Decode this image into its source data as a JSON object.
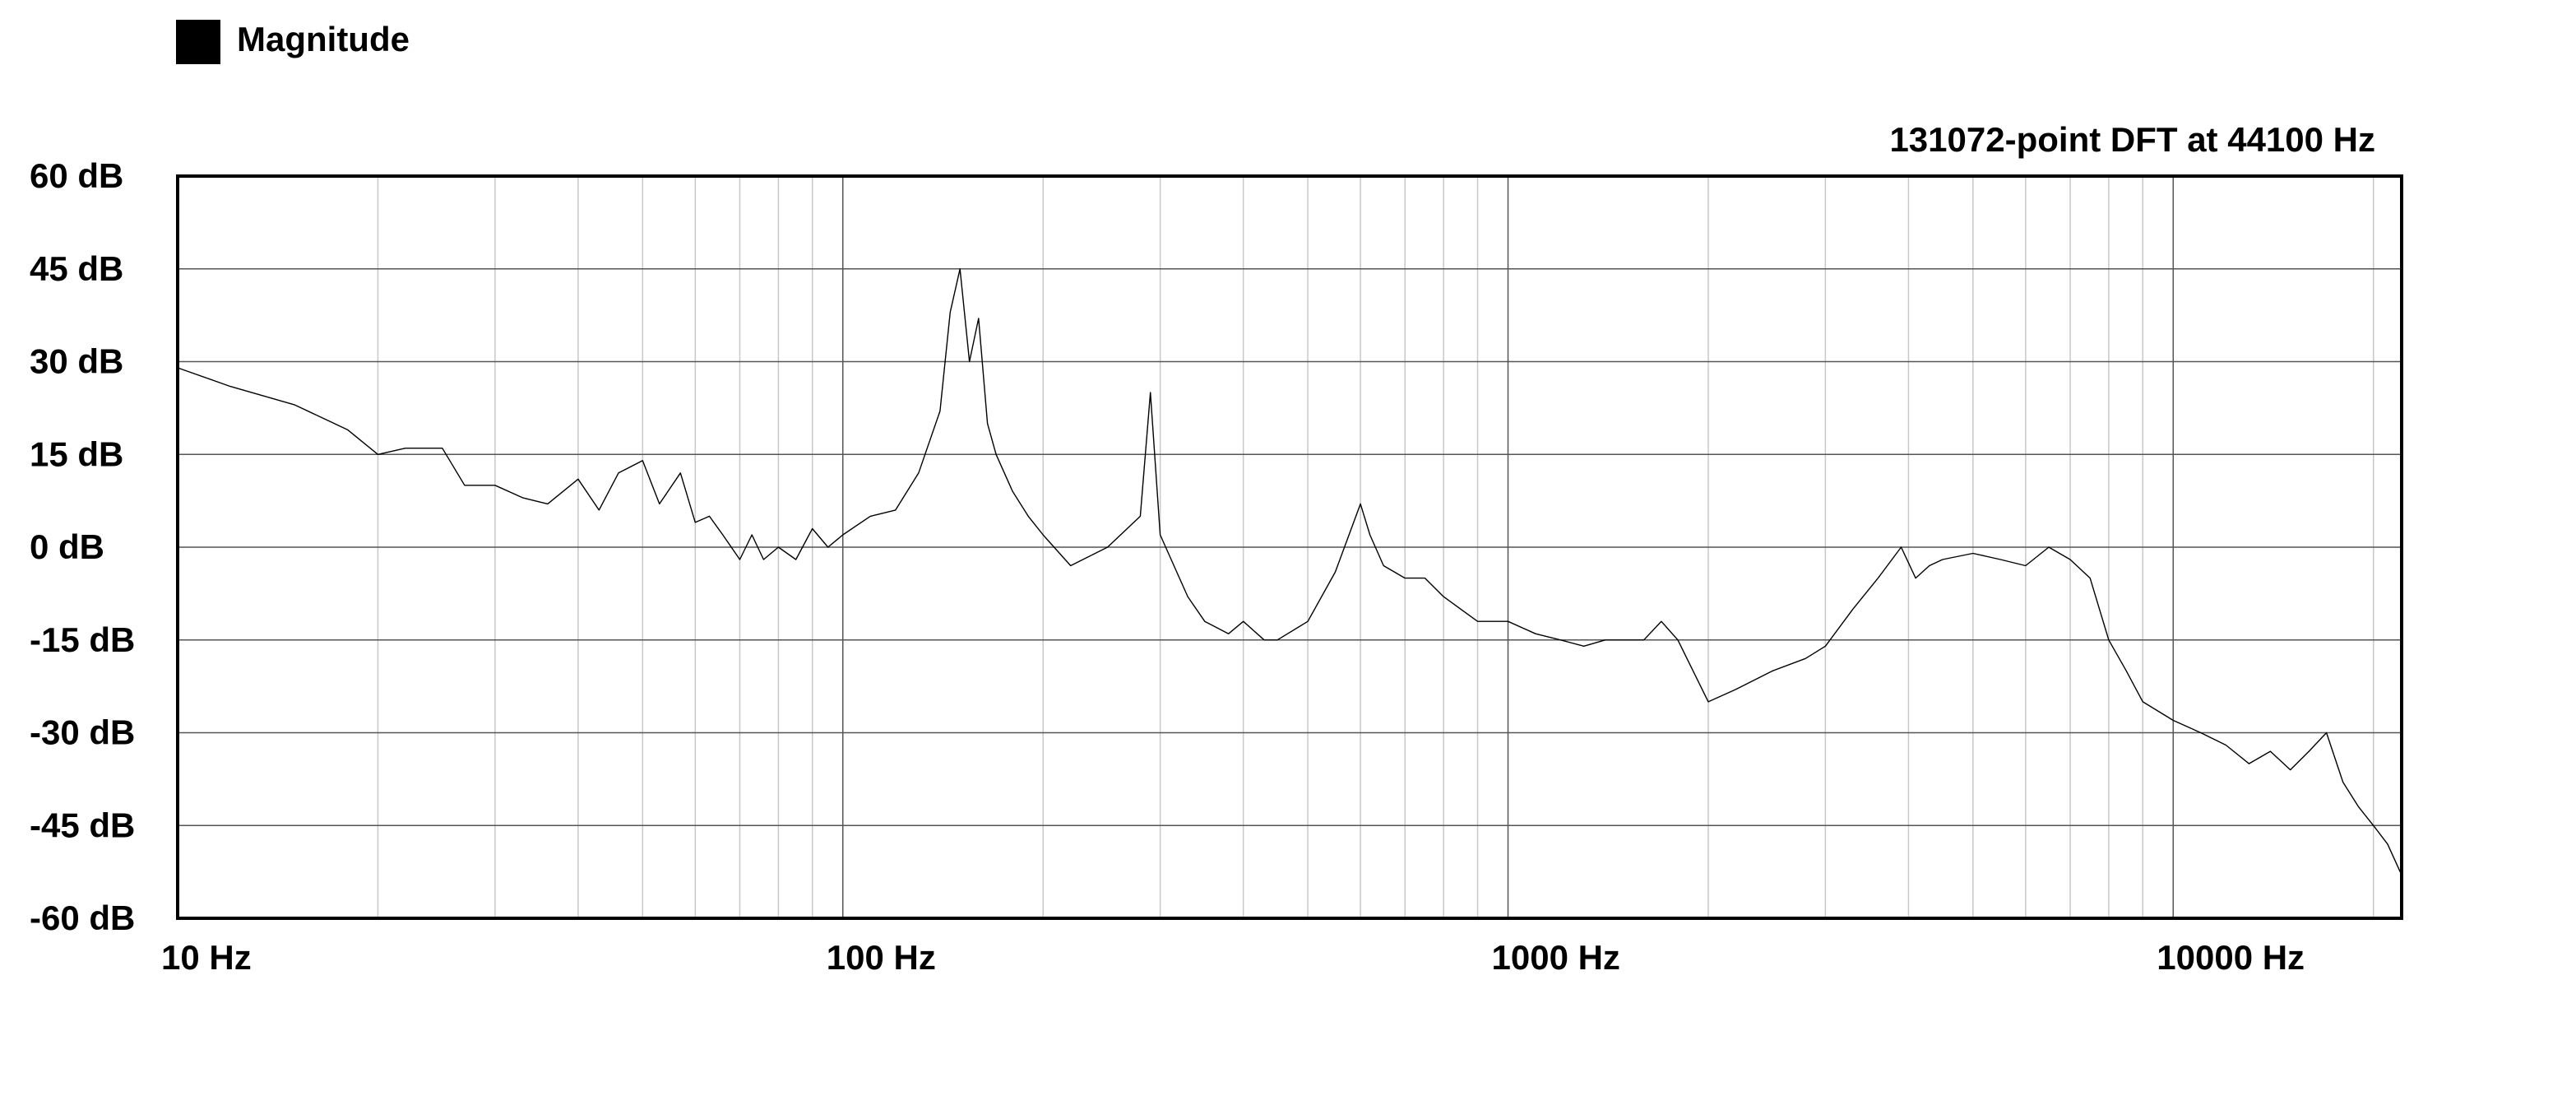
{
  "chart_data": {
    "type": "line",
    "title": "131072-point DFT at 44100 Hz",
    "legend": {
      "placement": "top-left",
      "entries": [
        {
          "name": "Magnitude",
          "color": "#000000"
        }
      ]
    },
    "x_scale": "log",
    "xlim": [
      10,
      22050
    ],
    "ylim": [
      -60,
      60
    ],
    "x_ticks": [
      {
        "value": 10,
        "label": "10 Hz"
      },
      {
        "value": 100,
        "label": "100 Hz"
      },
      {
        "value": 1000,
        "label": "1000 Hz"
      },
      {
        "value": 10000,
        "label": "10000 Hz"
      }
    ],
    "y_ticks": [
      {
        "value": 60,
        "label": "60 dB"
      },
      {
        "value": 45,
        "label": "45 dB"
      },
      {
        "value": 30,
        "label": "30 dB"
      },
      {
        "value": 15,
        "label": "15 dB"
      },
      {
        "value": 0,
        "label": "0 dB"
      },
      {
        "value": -15,
        "label": "-15 dB"
      },
      {
        "value": -30,
        "label": "-30 dB"
      },
      {
        "value": -45,
        "label": "-45 dB"
      },
      {
        "value": -60,
        "label": "-60 dB"
      }
    ],
    "grid": true,
    "series": [
      {
        "name": "Magnitude",
        "color": "#000000",
        "x": [
          10,
          12,
          15,
          18,
          20,
          22,
          25,
          27,
          30,
          33,
          36,
          40,
          43,
          46,
          50,
          53,
          57,
          60,
          63,
          66,
          70,
          73,
          76,
          80,
          85,
          90,
          95,
          100,
          110,
          120,
          130,
          140,
          145,
          150,
          155,
          160,
          165,
          170,
          180,
          190,
          200,
          220,
          250,
          280,
          290,
          300,
          330,
          350,
          380,
          400,
          430,
          450,
          500,
          550,
          600,
          620,
          650,
          700,
          750,
          800,
          900,
          1000,
          1100,
          1200,
          1300,
          1400,
          1500,
          1600,
          1700,
          1800,
          2000,
          2200,
          2500,
          2800,
          3000,
          3300,
          3600,
          3900,
          4100,
          4300,
          4500,
          5000,
          5500,
          6000,
          6500,
          7000,
          7500,
          8000,
          8500,
          9000,
          10000,
          11000,
          12000,
          13000,
          14000,
          15000,
          16000,
          17000,
          18000,
          19000,
          20000,
          21000,
          22050
        ],
        "y": [
          29,
          26,
          23,
          19,
          15,
          16,
          16,
          10,
          10,
          8,
          7,
          11,
          6,
          12,
          14,
          7,
          12,
          4,
          5,
          2,
          -2,
          2,
          -2,
          0,
          -2,
          3,
          0,
          2,
          5,
          6,
          12,
          22,
          38,
          45,
          30,
          37,
          20,
          15,
          9,
          5,
          2,
          -3,
          0,
          5,
          25,
          2,
          -8,
          -12,
          -14,
          -12,
          -15,
          -15,
          -12,
          -4,
          7,
          2,
          -3,
          -5,
          -5,
          -8,
          -12,
          -12,
          -14,
          -15,
          -16,
          -15,
          -15,
          -15,
          -12,
          -15,
          -25,
          -23,
          -20,
          -18,
          -16,
          -10,
          -5,
          0,
          -5,
          -3,
          -2,
          -1,
          -2,
          -3,
          0,
          -2,
          -5,
          -15,
          -20,
          -25,
          -28,
          -30,
          -32,
          -35,
          -33,
          -36,
          -33,
          -30,
          -38,
          -42,
          -45,
          -48,
          -53
        ]
      }
    ]
  }
}
